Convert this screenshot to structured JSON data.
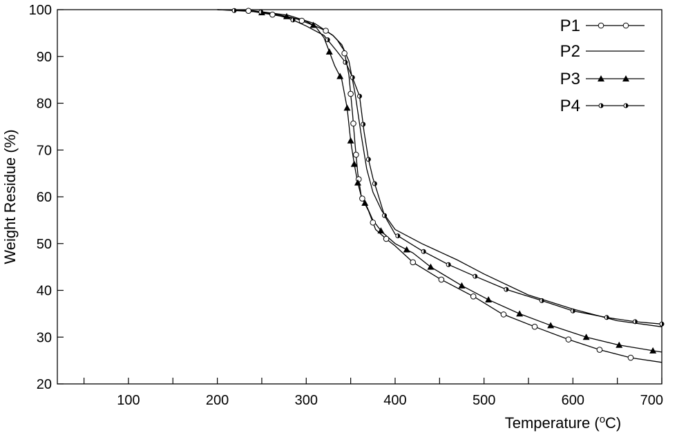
{
  "chart_data": {
    "type": "line",
    "xlabel": "Temperature (°C)",
    "ylabel": "Weight Residue (%)",
    "xlim": [
      20,
      700
    ],
    "ylim": [
      20,
      100
    ],
    "x_ticks": [
      100,
      200,
      300,
      400,
      500,
      600,
      700
    ],
    "x_minor_ticks": [
      50,
      150,
      250,
      350,
      450,
      550,
      650
    ],
    "y_ticks": [
      20,
      30,
      40,
      50,
      60,
      70,
      80,
      90,
      100
    ],
    "legend_position": "top-right",
    "grid": false,
    "series": [
      {
        "name": "P1",
        "marker": "open-circle",
        "color": "#000000",
        "points": [
          [
            200,
            100
          ],
          [
            230,
            99.9
          ],
          [
            260,
            99.0
          ],
          [
            290,
            98.0
          ],
          [
            310,
            96.5
          ],
          [
            322,
            95.5
          ],
          [
            330,
            94.5
          ],
          [
            335,
            93.5
          ],
          [
            340,
            92.0
          ],
          [
            342,
            91.5
          ],
          [
            345,
            89.0
          ],
          [
            348,
            86.0
          ],
          [
            352,
            78.0
          ],
          [
            355,
            71.0
          ],
          [
            358,
            65.0
          ],
          [
            362,
            60.0
          ],
          [
            370,
            57.0
          ],
          [
            378,
            53.0
          ],
          [
            390,
            51.0
          ],
          [
            400,
            49.5
          ],
          [
            420,
            46.0
          ],
          [
            450,
            42.5
          ],
          [
            490,
            38.5
          ],
          [
            520,
            35.0
          ],
          [
            560,
            32.0
          ],
          [
            595,
            29.5
          ],
          [
            630,
            27.3
          ],
          [
            665,
            25.6
          ],
          [
            700,
            24.6
          ]
        ],
        "marker_x": [
          235,
          262,
          295,
          322,
          343,
          350,
          353,
          356,
          359,
          363,
          375,
          390,
          420,
          452,
          488,
          522,
          557,
          595,
          630,
          665
        ]
      },
      {
        "name": "P2",
        "marker": "none",
        "color": "#000000",
        "points": [
          [
            200,
            100
          ],
          [
            240,
            99.8
          ],
          [
            280,
            98.8
          ],
          [
            310,
            97.0
          ],
          [
            330,
            94.5
          ],
          [
            340,
            92.5
          ],
          [
            348,
            89.0
          ],
          [
            355,
            82.0
          ],
          [
            362,
            73.0
          ],
          [
            368,
            66.0
          ],
          [
            375,
            61.0
          ],
          [
            385,
            57.0
          ],
          [
            400,
            53.0
          ],
          [
            430,
            50.0
          ],
          [
            470,
            46.5
          ],
          [
            500,
            43.5
          ],
          [
            550,
            39.0
          ],
          [
            600,
            36.0
          ],
          [
            650,
            33.5
          ],
          [
            700,
            32.2
          ]
        ]
      },
      {
        "name": "P3",
        "marker": "filled-triangle",
        "color": "#000000",
        "points": [
          [
            200,
            100
          ],
          [
            230,
            99.8
          ],
          [
            260,
            99.2
          ],
          [
            280,
            98.5
          ],
          [
            300,
            97.5
          ],
          [
            310,
            96.5
          ],
          [
            320,
            94.0
          ],
          [
            326,
            91.0
          ],
          [
            332,
            88.0
          ],
          [
            340,
            85.0
          ],
          [
            346,
            79.0
          ],
          [
            350,
            72.0
          ],
          [
            354,
            67.0
          ],
          [
            358,
            63.0
          ],
          [
            362,
            60.0
          ],
          [
            368,
            58.0
          ],
          [
            375,
            55.0
          ],
          [
            385,
            52.5
          ],
          [
            400,
            50.0
          ],
          [
            420,
            48.0
          ],
          [
            440,
            45.0
          ],
          [
            475,
            41.0
          ],
          [
            505,
            38.0
          ],
          [
            540,
            35.0
          ],
          [
            575,
            32.5
          ],
          [
            615,
            30.0
          ],
          [
            652,
            28.3
          ],
          [
            690,
            27.1
          ],
          [
            700,
            26.8
          ]
        ],
        "marker_x": [
          250,
          278,
          308,
          326,
          338,
          346,
          350,
          354,
          358,
          366,
          384,
          413,
          440,
          475,
          505,
          540,
          575,
          615,
          652,
          690
        ]
      },
      {
        "name": "P4",
        "marker": "half-filled-circle",
        "color": "#000000",
        "points": [
          [
            200,
            100
          ],
          [
            220,
            99.8
          ],
          [
            250,
            99.5
          ],
          [
            270,
            98.7
          ],
          [
            285,
            97.8
          ],
          [
            300,
            96.5
          ],
          [
            320,
            94.5
          ],
          [
            335,
            91.0
          ],
          [
            345,
            88.5
          ],
          [
            352,
            85.5
          ],
          [
            360,
            81.5
          ],
          [
            365,
            74.0
          ],
          [
            370,
            68.0
          ],
          [
            375,
            64.0
          ],
          [
            380,
            61.0
          ],
          [
            388,
            56.0
          ],
          [
            400,
            52.0
          ],
          [
            430,
            48.5
          ],
          [
            460,
            45.5
          ],
          [
            490,
            43.0
          ],
          [
            525,
            40.2
          ],
          [
            565,
            37.8
          ],
          [
            600,
            35.6
          ],
          [
            638,
            34.2
          ],
          [
            670,
            33.3
          ],
          [
            700,
            32.8
          ]
        ],
        "marker_x": [
          219,
          249,
          285,
          324,
          344,
          352,
          360,
          364,
          370,
          377,
          388,
          403,
          432,
          460,
          490,
          525,
          565,
          600,
          638,
          670,
          700
        ]
      }
    ]
  }
}
